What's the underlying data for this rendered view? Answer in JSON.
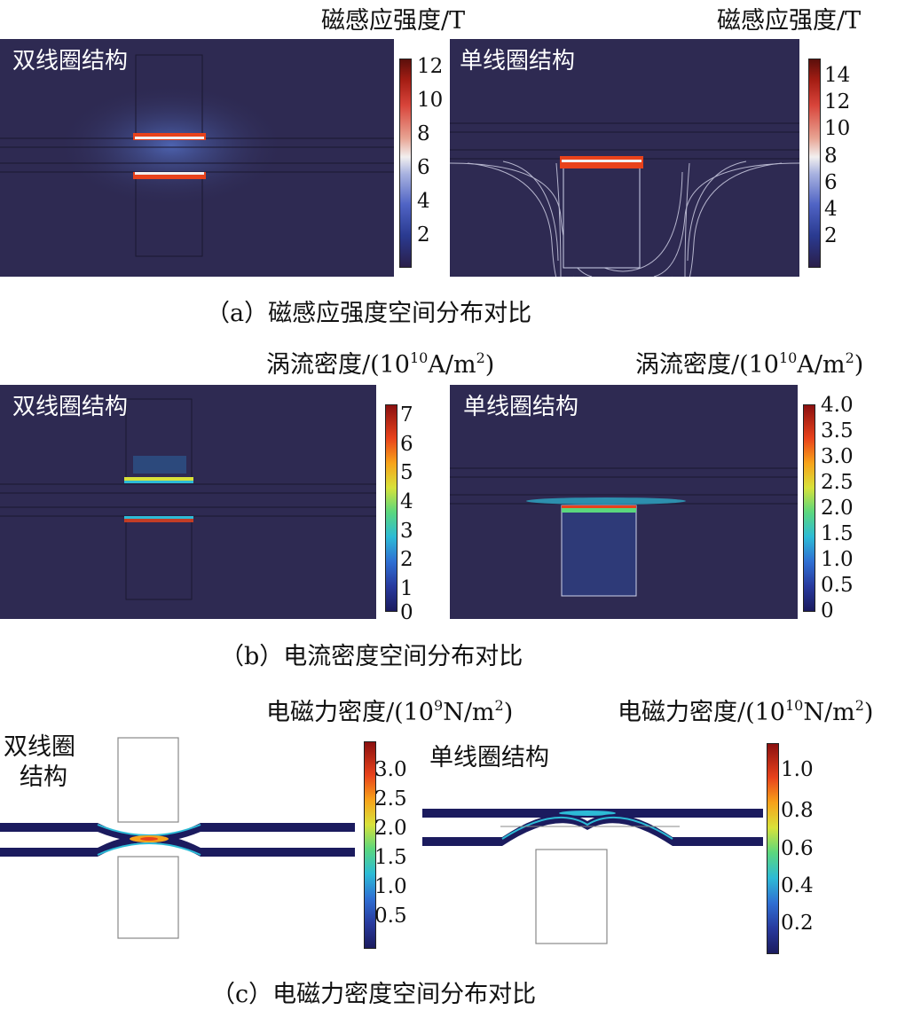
{
  "panel_a": {
    "left_cb_title": "磁感应强度/T",
    "right_cb_title": "磁感应强度/T",
    "left_label": "双线圈结构",
    "right_label": "单线圈结构",
    "left_ticks": [
      "12",
      "10",
      "8",
      "6",
      "4",
      "2"
    ],
    "right_ticks": [
      "14",
      "12",
      "10",
      "8",
      "6",
      "4",
      "2"
    ],
    "caption": "（a）磁感应强度空间分布对比"
  },
  "panel_b": {
    "left_cb_title": "涡流密度/(10",
    "left_cb_sup": "10",
    "left_cb_unit": "A/m",
    "left_cb_sup2": "2",
    "right_cb_title": "涡流密度/(10",
    "right_cb_sup": "10",
    "right_cb_unit": "A/m",
    "right_cb_sup2": "2",
    "cb_close": ")",
    "left_label": "双线圈结构",
    "right_label": "单线圈结构",
    "left_ticks": [
      "7",
      "6",
      "5",
      "4",
      "3",
      "2",
      "1",
      "0"
    ],
    "right_ticks": [
      "4.0",
      "3.5",
      "3.0",
      "2.5",
      "2.0",
      "1.5",
      "1.0",
      "0.5",
      "0"
    ],
    "caption": "（b）电流密度空间分布对比"
  },
  "panel_c": {
    "left_cb_title": "电磁力密度/(10",
    "left_cb_sup": "9",
    "left_cb_unit": "N/m",
    "left_cb_sup2": "2",
    "right_cb_title": "电磁力密度/(10",
    "right_cb_sup": "10",
    "right_cb_unit": "N/m",
    "right_cb_sup2": "2",
    "cb_close": ")",
    "left_label_line1": "双线圈",
    "left_label_line2": "结构",
    "right_label": "单线圈结构",
    "left_ticks": [
      "3.0",
      "2.5",
      "2.0",
      "1.5",
      "1.0",
      "0.5"
    ],
    "right_ticks": [
      "1.0",
      "0.8",
      "0.6",
      "0.4",
      "0.2"
    ],
    "caption": "（c）电磁力密度空间分布对比"
  },
  "colors": {
    "field_background": "#2e2a52",
    "field_hot": "#e8421b",
    "field_line": "#d9d9ee"
  }
}
